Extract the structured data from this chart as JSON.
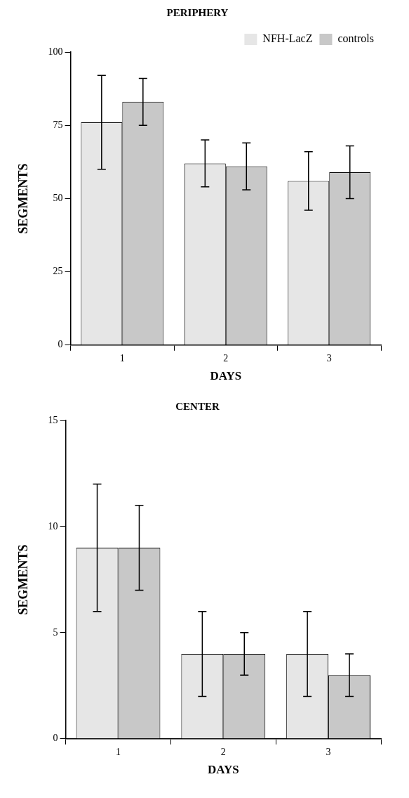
{
  "chart_data": [
    {
      "type": "bar",
      "title": "PERIPHERY",
      "xlabel": "DAYS",
      "ylabel": "SEGMENTS",
      "categories": [
        "1",
        "2",
        "3"
      ],
      "series": [
        {
          "name": "NFH-LacZ",
          "color": "#e6e6e6",
          "values": [
            76,
            62,
            56
          ],
          "errors": [
            16,
            8,
            10
          ]
        },
        {
          "name": "controls",
          "color": "#c8c8c8",
          "values": [
            83,
            61,
            59
          ],
          "errors": [
            8,
            8,
            9
          ]
        }
      ],
      "ylim": [
        0,
        100
      ],
      "yticks": [
        0,
        25,
        50,
        75,
        100
      ],
      "grid": false,
      "legend": "top right"
    },
    {
      "type": "bar",
      "title": "CENTER",
      "xlabel": "DAYS",
      "ylabel": "SEGMENTS",
      "categories": [
        "1",
        "2",
        "3"
      ],
      "series": [
        {
          "color": "#e6e6e6",
          "values": [
            9,
            4,
            4
          ],
          "errors": [
            3,
            2,
            2
          ]
        },
        {
          "color": "#c8c8c8",
          "values": [
            9,
            4,
            3
          ],
          "errors": [
            2,
            1,
            1
          ]
        }
      ],
      "ylim": [
        0,
        15
      ],
      "yticks": [
        0,
        5,
        10,
        15
      ],
      "grid": false,
      "legend": false
    }
  ]
}
